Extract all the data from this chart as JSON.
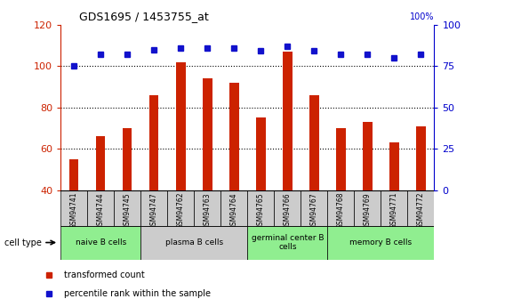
{
  "title": "GDS1695 / 1453755_at",
  "categories": [
    "GSM94741",
    "GSM94744",
    "GSM94745",
    "GSM94747",
    "GSM94762",
    "GSM94763",
    "GSM94764",
    "GSM94765",
    "GSM94766",
    "GSM94767",
    "GSM94768",
    "GSM94769",
    "GSM94771",
    "GSM94772"
  ],
  "bar_values": [
    55,
    66,
    70,
    86,
    102,
    94,
    92,
    75,
    107,
    86,
    70,
    73,
    63,
    71
  ],
  "dot_values": [
    75,
    82,
    82,
    85,
    86,
    86,
    86,
    84,
    87,
    84,
    82,
    82,
    80,
    82
  ],
  "bar_color": "#cc2200",
  "dot_color": "#1111cc",
  "ylim_left": [
    40,
    120
  ],
  "ylim_right": [
    0,
    100
  ],
  "yticks_left": [
    40,
    60,
    80,
    100,
    120
  ],
  "yticks_right": [
    0,
    25,
    50,
    75,
    100
  ],
  "ylabel_left_color": "#cc2200",
  "ylabel_right_color": "#0000cc",
  "cell_type_groups": [
    {
      "label": "naive B cells",
      "start": 0,
      "end": 3,
      "color": "#90ee90"
    },
    {
      "label": "plasma B cells",
      "start": 3,
      "end": 7,
      "color": "#cccccc"
    },
    {
      "label": "germinal center B\ncells",
      "start": 7,
      "end": 10,
      "color": "#90ee90"
    },
    {
      "label": "memory B cells",
      "start": 10,
      "end": 14,
      "color": "#90ee90"
    }
  ],
  "cell_type_label": "cell type",
  "legend_bar_label": "transformed count",
  "legend_dot_label": "percentile rank within the sample",
  "background_color": "#ffffff",
  "plot_bg_color": "#ffffff",
  "grid_color": "#000000",
  "bar_width": 0.35,
  "tick_bg_color": "#cccccc"
}
